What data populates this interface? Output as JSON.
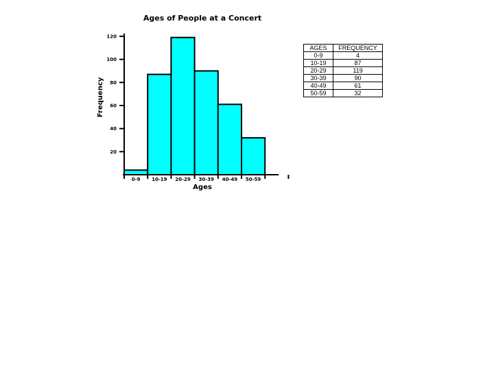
{
  "chart_data": {
    "type": "bar",
    "title": "Ages of People at a Concert",
    "xlabel": "Ages",
    "ylabel": "Frequency",
    "categories": [
      "0-9",
      "10-19",
      "20-29",
      "30-39",
      "40-49",
      "50-59"
    ],
    "values": [
      4,
      87,
      119,
      90,
      61,
      32
    ],
    "ylim": [
      0,
      120
    ],
    "yticks": [
      20,
      40,
      60,
      80,
      100,
      120
    ],
    "grid": false,
    "bar_color": "#00FFFF",
    "bar_stroke": "#000000"
  },
  "table": {
    "headers": [
      "AGES",
      "FREQUENCY"
    ],
    "rows": [
      [
        "0-9",
        "4"
      ],
      [
        "10-19",
        "87"
      ],
      [
        "20-29",
        "119"
      ],
      [
        "30-39",
        "90"
      ],
      [
        "40-49",
        "61"
      ],
      [
        "50-59",
        "32"
      ]
    ]
  }
}
